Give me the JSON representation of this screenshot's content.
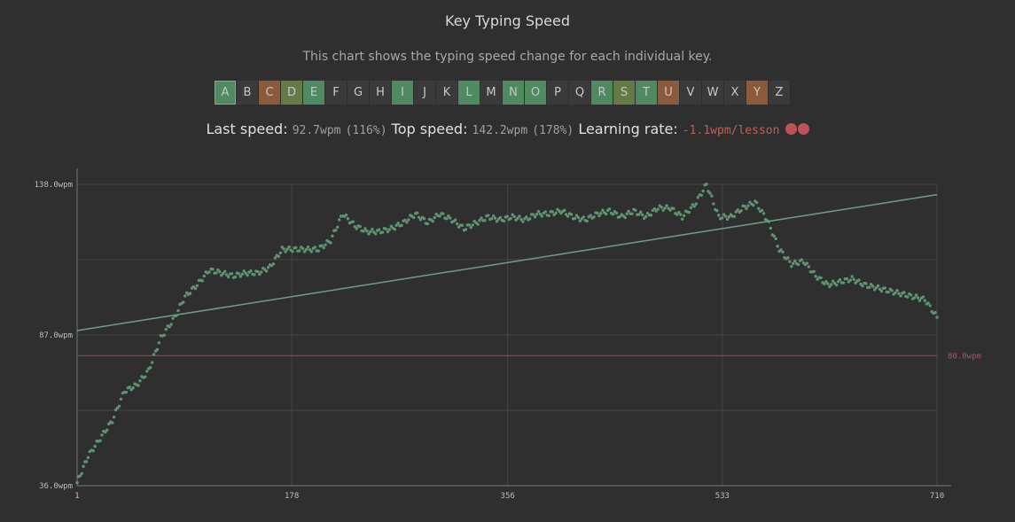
{
  "header": {
    "title": "Key Typing Speed",
    "subtitle": "This chart shows the typing speed change for each individual key."
  },
  "keys": [
    {
      "label": "A",
      "color": "#4f8a63",
      "selected": true
    },
    {
      "label": "B",
      "color": "#3a3a3a"
    },
    {
      "label": "C",
      "color": "#8a5a3a"
    },
    {
      "label": "D",
      "color": "#667a48"
    },
    {
      "label": "E",
      "color": "#4f8a63"
    },
    {
      "label": "F",
      "color": "#3a3a3a"
    },
    {
      "label": "G",
      "color": "#3a3a3a"
    },
    {
      "label": "H",
      "color": "#3a3a3a"
    },
    {
      "label": "I",
      "color": "#4f8a63"
    },
    {
      "label": "J",
      "color": "#3a3a3a"
    },
    {
      "label": "K",
      "color": "#3a3a3a"
    },
    {
      "label": "L",
      "color": "#4f8a63"
    },
    {
      "label": "M",
      "color": "#3a3a3a"
    },
    {
      "label": "N",
      "color": "#4f8a63"
    },
    {
      "label": "O",
      "color": "#4f8a63"
    },
    {
      "label": "P",
      "color": "#3a3a3a"
    },
    {
      "label": "Q",
      "color": "#3a3a3a"
    },
    {
      "label": "R",
      "color": "#4f8a63"
    },
    {
      "label": "S",
      "color": "#667a48"
    },
    {
      "label": "T",
      "color": "#4f8a63"
    },
    {
      "label": "U",
      "color": "#8a5a3a"
    },
    {
      "label": "V",
      "color": "#3a3a3a"
    },
    {
      "label": "W",
      "color": "#3a3a3a"
    },
    {
      "label": "X",
      "color": "#3a3a3a"
    },
    {
      "label": "Y",
      "color": "#8a5a3a"
    },
    {
      "label": "Z",
      "color": "#3a3a3a"
    }
  ],
  "stats": {
    "last_speed_label": "Last speed:",
    "last_speed_value": "92.7wpm",
    "last_speed_pct": "(116%)",
    "top_speed_label": "Top speed:",
    "top_speed_value": "142.2wpm",
    "top_speed_pct": "(178%)",
    "learning_rate_label": "Learning rate:",
    "learning_rate_value": "-1.1wpm/lesson"
  },
  "chart_data": {
    "type": "scatter",
    "xlim": [
      1,
      710
    ],
    "ylim": [
      36.0,
      138.0
    ],
    "x_ticks": [
      "1",
      "178",
      "356",
      "533",
      "710"
    ],
    "y_ticks": [
      "36.0wpm",
      "87.0wpm",
      "138.0wpm"
    ],
    "grid": true,
    "target_line": {
      "value": 80.0,
      "label": "80.0wpm",
      "color": "#8a4a55"
    },
    "trend_line": {
      "start": [
        1,
        88.5
      ],
      "end": [
        710,
        134.5
      ],
      "color": "#6f9f84"
    },
    "point_color": "#5f9472",
    "series": [
      {
        "x": [
          1,
          10,
          20,
          30,
          40,
          50,
          60,
          70,
          80,
          90,
          100,
          110,
          120,
          130,
          140,
          150,
          160,
          170,
          180,
          190,
          200,
          210,
          220,
          230,
          240,
          250,
          260,
          270,
          280,
          290,
          300,
          310,
          320,
          330,
          340,
          350,
          360,
          370,
          380,
          390,
          400,
          410,
          420,
          430,
          440,
          450,
          460,
          470,
          480,
          490,
          500,
          510,
          520,
          530,
          540,
          550,
          560,
          570,
          580,
          590,
          600,
          610,
          620,
          630,
          640,
          650,
          660,
          670,
          680,
          690,
          700,
          710
        ],
        "y": [
          37,
          46,
          52,
          58,
          68,
          70,
          75,
          86,
          92,
          100,
          104,
          109,
          108,
          107,
          108,
          108,
          110,
          116,
          116,
          116,
          116,
          119,
          128,
          124,
          122,
          122,
          123,
          125,
          128,
          125,
          128,
          126,
          123,
          125,
          127,
          126,
          127,
          126,
          128,
          128,
          129,
          127,
          126,
          128,
          129,
          127,
          129,
          127,
          130,
          130,
          127,
          131,
          138,
          127,
          127,
          130,
          132,
          126,
          116,
          111,
          112,
          107,
          104,
          105,
          106,
          104,
          103,
          102,
          101,
          100,
          99,
          93
        ]
      }
    ]
  }
}
